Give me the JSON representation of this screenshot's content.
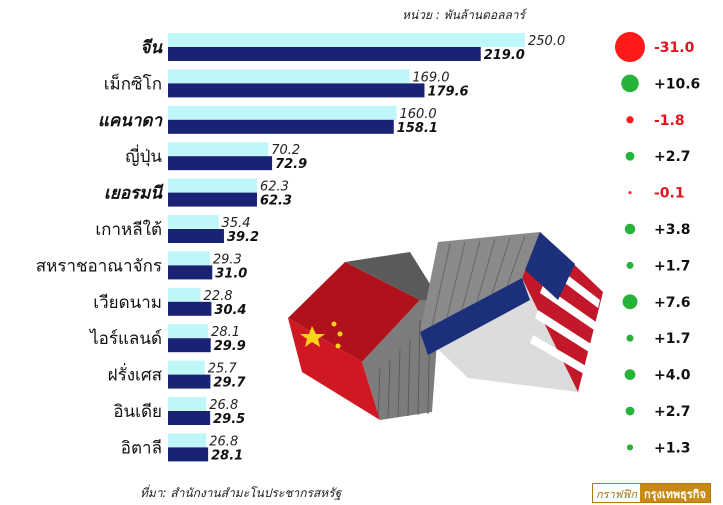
{
  "unit_label": "หน่วย : พันล้านดอลลาร์",
  "source_label": "ที่มา: สำนักงานสำมะโนประชากรสหรัฐ",
  "credit": {
    "part1": "กราฟฟิก",
    "part2": "กรุงเทพธุรกิจ"
  },
  "colors": {
    "series_1": "#bff6f8",
    "series_2": "#1a2273",
    "decrease": "#ff1a1a",
    "increase": "#27b23a"
  },
  "chart_data": {
    "type": "bar",
    "orientation": "horizontal",
    "categories": [
      "จีน",
      "เม็กซิโก",
      "แคนาดา",
      "ญี่ปุ่น",
      "เยอรมนี",
      "เกาหลีใต้",
      "สหราชอาณาจักร",
      "เวียดนาม",
      "ไอร์แลนด์",
      "ฝรั่งเศส",
      "อินเดีย",
      "อิตาลี"
    ],
    "bold_categories": [
      "จีน",
      "แคนาดา",
      "เยอรมนี"
    ],
    "series": [
      {
        "values": [
          250.0,
          169.0,
          160.0,
          70.2,
          62.3,
          35.4,
          29.3,
          22.8,
          28.1,
          25.7,
          26.8,
          26.8
        ]
      },
      {
        "values": [
          219.0,
          179.6,
          158.1,
          72.9,
          62.3,
          39.2,
          31.0,
          30.4,
          29.9,
          29.7,
          29.5,
          28.1
        ]
      }
    ],
    "labels_1": [
      "250.0",
      "169.0",
      "160.0",
      "70.2",
      "62.3",
      "35.4",
      "29.3",
      "22.8",
      "28.1",
      "25.7",
      "26.8",
      "26.8"
    ],
    "labels_2": [
      "219.0",
      "179.6",
      "158.1",
      "72.9",
      "62.3",
      "39.2",
      "31.0",
      "30.4",
      "29.9",
      "29.7",
      "29.5",
      "28.1"
    ],
    "change": [
      -31.0,
      10.6,
      -1.8,
      2.7,
      -0.1,
      3.8,
      1.7,
      7.6,
      1.7,
      4.0,
      2.7,
      1.3
    ],
    "change_labels": [
      "-31.0",
      "+10.6",
      "-1.8",
      "+2.7",
      "-0.1",
      "+3.8",
      "+1.7",
      "+7.6",
      "+1.7",
      "+4.0",
      "+2.7",
      "+1.3"
    ],
    "xlim": [
      0,
      250
    ]
  }
}
